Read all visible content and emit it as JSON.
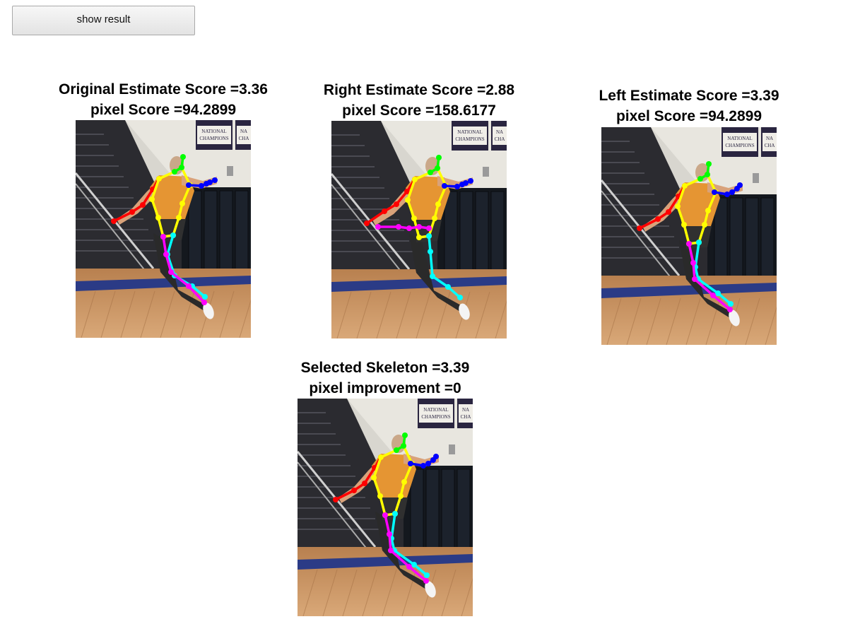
{
  "toolbar": {
    "show_result_label": "show result"
  },
  "panels": [
    {
      "key": "original",
      "line1": "Original Estimate Score =3.36",
      "line2": "pixel Score =94.2899",
      "variant": "original"
    },
    {
      "key": "right",
      "line1": "Right Estimate Score =2.88",
      "line2": "pixel Score =158.6177",
      "variant": "right"
    },
    {
      "key": "left",
      "line1": "Left Estimate Score =3.39",
      "line2": "pixel Score =94.2899",
      "variant": "left"
    },
    {
      "key": "selected",
      "line1": "Selected Skeleton =3.39",
      "line2": "pixel improvement =0",
      "variant": "left"
    }
  ],
  "banner_text": {
    "line1": "NATIONAL",
    "line2": "CHAMPIONS",
    "side1": "NA",
    "side2": "CHA"
  },
  "skeleton_colors": {
    "head": "#00ff00",
    "torso": "#ffff00",
    "right_arm": "#0000ff",
    "left_arm": "#ff0000",
    "right_leg": "#00ffff",
    "left_leg": "#ff00ff"
  }
}
